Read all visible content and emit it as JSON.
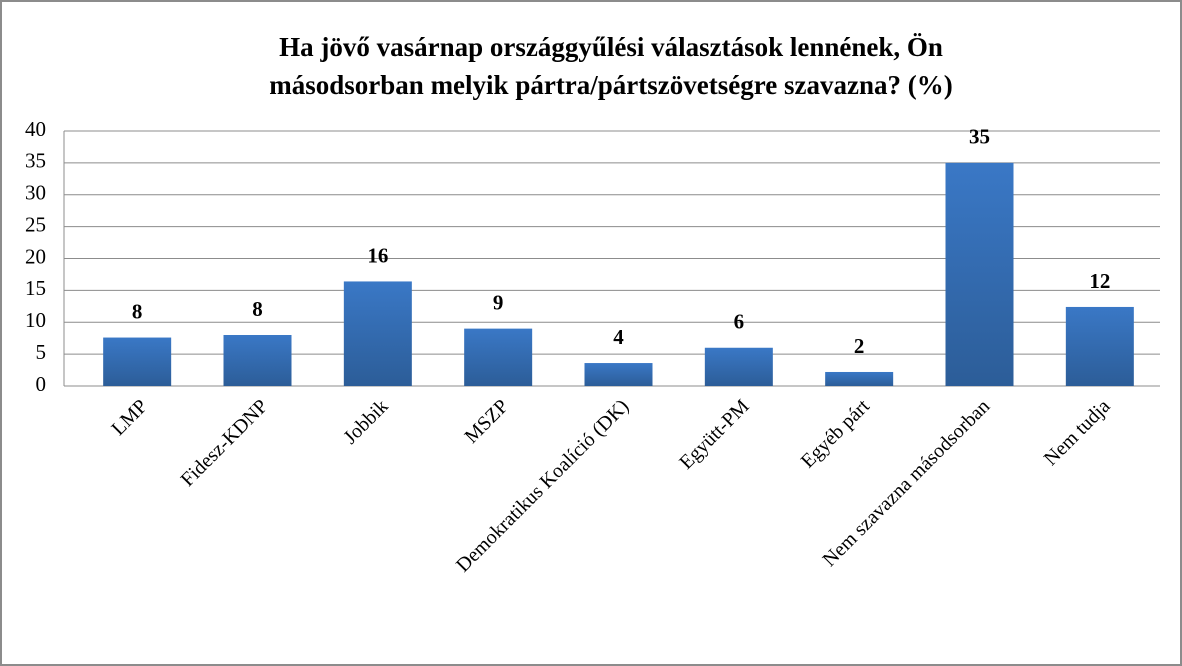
{
  "chart_data": {
    "type": "bar",
    "title": "Ha jövő vasárnap országgyűlési választások lennének, Ön másodsorban melyik pártra/pártszövetségre szavazna? (%)",
    "categories": [
      "LMP",
      "Fidesz-KDNP",
      "Jobbik",
      "MSZP",
      "Demokratikus Koalíció (DK)",
      "Együtt-PM",
      "Egyéb párt",
      "Nem szavazna másodsorban",
      "Nem tudja"
    ],
    "values": [
      7.6,
      8,
      16.4,
      9,
      3.6,
      6,
      2.2,
      35,
      12.4
    ],
    "value_labels": [
      "8",
      "8",
      "16",
      "9",
      "4",
      "6",
      "2",
      "35",
      "12"
    ],
    "color": "#3a78c6",
    "ylim": [
      0,
      40
    ],
    "yticks": [
      0,
      5,
      10,
      15,
      20,
      25,
      30,
      35,
      40
    ],
    "grid": true
  }
}
